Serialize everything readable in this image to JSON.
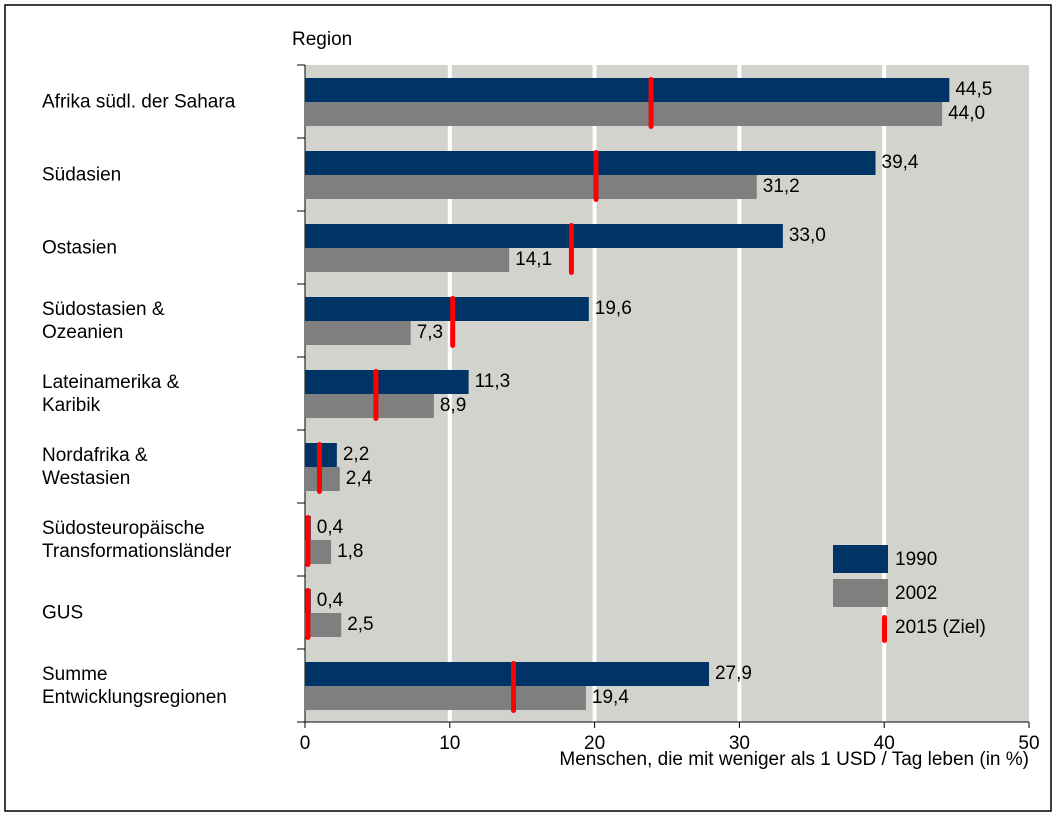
{
  "chart_data": {
    "type": "bar",
    "orientation": "horizontal",
    "y_axis_title": "Region",
    "x_axis_title": "Menschen, die mit weniger als 1 USD / Tag leben (in %)",
    "categories": [
      "Afrika südl. der Sahara",
      "Südasien",
      "Ostasien",
      "Südostasien &\nOzeanien",
      "Lateinamerika &\nKaribik",
      "Nordafrika &\nWestasien",
      "Südosteuropäische\nTransformationsländer",
      "GUS",
      "Summe\nEntwicklungsregionen"
    ],
    "series": [
      {
        "name": "1990",
        "color": "#003366",
        "values": [
          44.5,
          39.4,
          33.0,
          19.6,
          11.3,
          2.2,
          0.4,
          0.4,
          27.9
        ],
        "value_labels": [
          "44,5",
          "39,4",
          "33,0",
          "19,6",
          "11,3",
          "2,2",
          "0,4",
          "0,4",
          "27,9"
        ]
      },
      {
        "name": "2002",
        "color": "#7f7f7f",
        "values": [
          44.0,
          31.2,
          14.1,
          7.3,
          8.9,
          2.4,
          1.8,
          2.5,
          19.4
        ],
        "value_labels": [
          "44,0",
          "31,2",
          "14,1",
          "7,3",
          "8,9",
          "2,4",
          "1,8",
          "2,5",
          "19,4"
        ]
      },
      {
        "name": "2015 (Ziel)",
        "color": "#ff0000",
        "marker": "target",
        "values": [
          23.9,
          20.1,
          18.4,
          10.2,
          4.9,
          1.0,
          0.2,
          0.2,
          14.4
        ]
      }
    ],
    "xlim": [
      0,
      50
    ],
    "xticks": [
      0,
      10,
      20,
      30,
      40,
      50
    ],
    "grid": true,
    "legend": "lower right"
  }
}
